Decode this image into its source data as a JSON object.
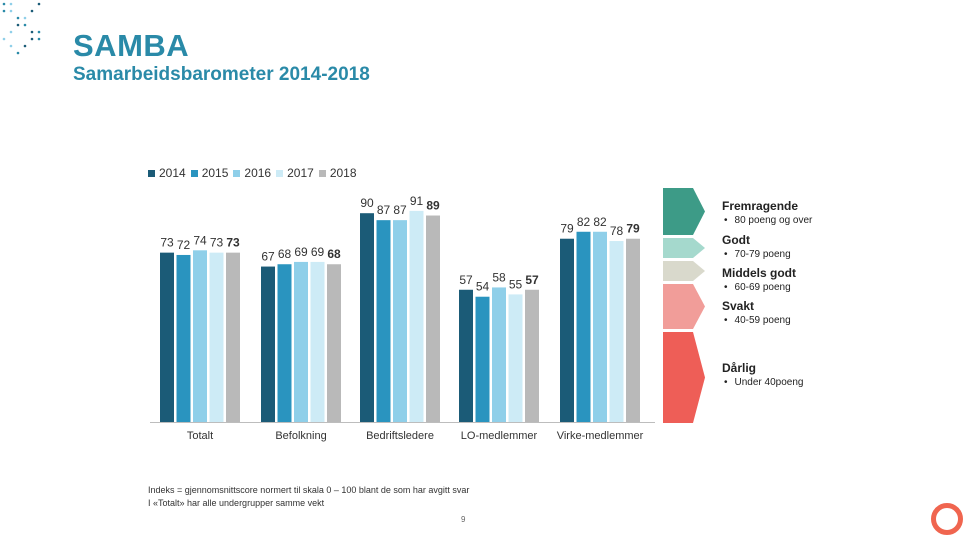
{
  "header": {
    "title": "SAMBA",
    "subtitle": "Samarbeidsbarometer 2014-2018"
  },
  "chart_data": {
    "type": "bar",
    "categories": [
      "Totalt",
      "Befolkning",
      "Bedriftsledere",
      "LO-medlemmer",
      "Virke-medlemmer"
    ],
    "series": [
      {
        "name": "2014",
        "color": "#1b5b77",
        "values": [
          73,
          67,
          90,
          57,
          79
        ]
      },
      {
        "name": "2015",
        "color": "#2a94bf",
        "values": [
          72,
          68,
          87,
          54,
          82
        ]
      },
      {
        "name": "2016",
        "color": "#8fcfe9",
        "values": [
          74,
          69,
          87,
          58,
          82
        ]
      },
      {
        "name": "2017",
        "color": "#cdebf6",
        "values": [
          73,
          69,
          91,
          55,
          78
        ]
      },
      {
        "name": "2018",
        "color": "#b9b9b9",
        "values": [
          73,
          68,
          89,
          57,
          79
        ]
      }
    ],
    "ylim": [
      0,
      100
    ],
    "bold_series": "2018",
    "legend_position": "top-left"
  },
  "scale": [
    {
      "label": "Fremragende",
      "desc": "80 poeng og over",
      "color": "#3d9b87"
    },
    {
      "label": "Godt",
      "desc": "70-79 poeng",
      "color": "#a5d9cd"
    },
    {
      "label": "Middels godt",
      "desc": "60-69 poeng",
      "color": "#d9d9cc"
    },
    {
      "label": "Svakt",
      "desc": "40-59 poeng",
      "color": "#f19d99"
    },
    {
      "label": "Dårlig",
      "desc": "Under 40poeng",
      "color": "#ee5e57"
    }
  ],
  "footnote": {
    "line1": "Indeks = gjennomsnittscore normert til skala  0 – 100 blant de som har avgitt svar",
    "line2": "I «Totalt» har alle undergrupper samme vekt"
  },
  "page_number": "9",
  "colors": {
    "accent": "#2a8aa8",
    "logo": "#f0654f"
  }
}
